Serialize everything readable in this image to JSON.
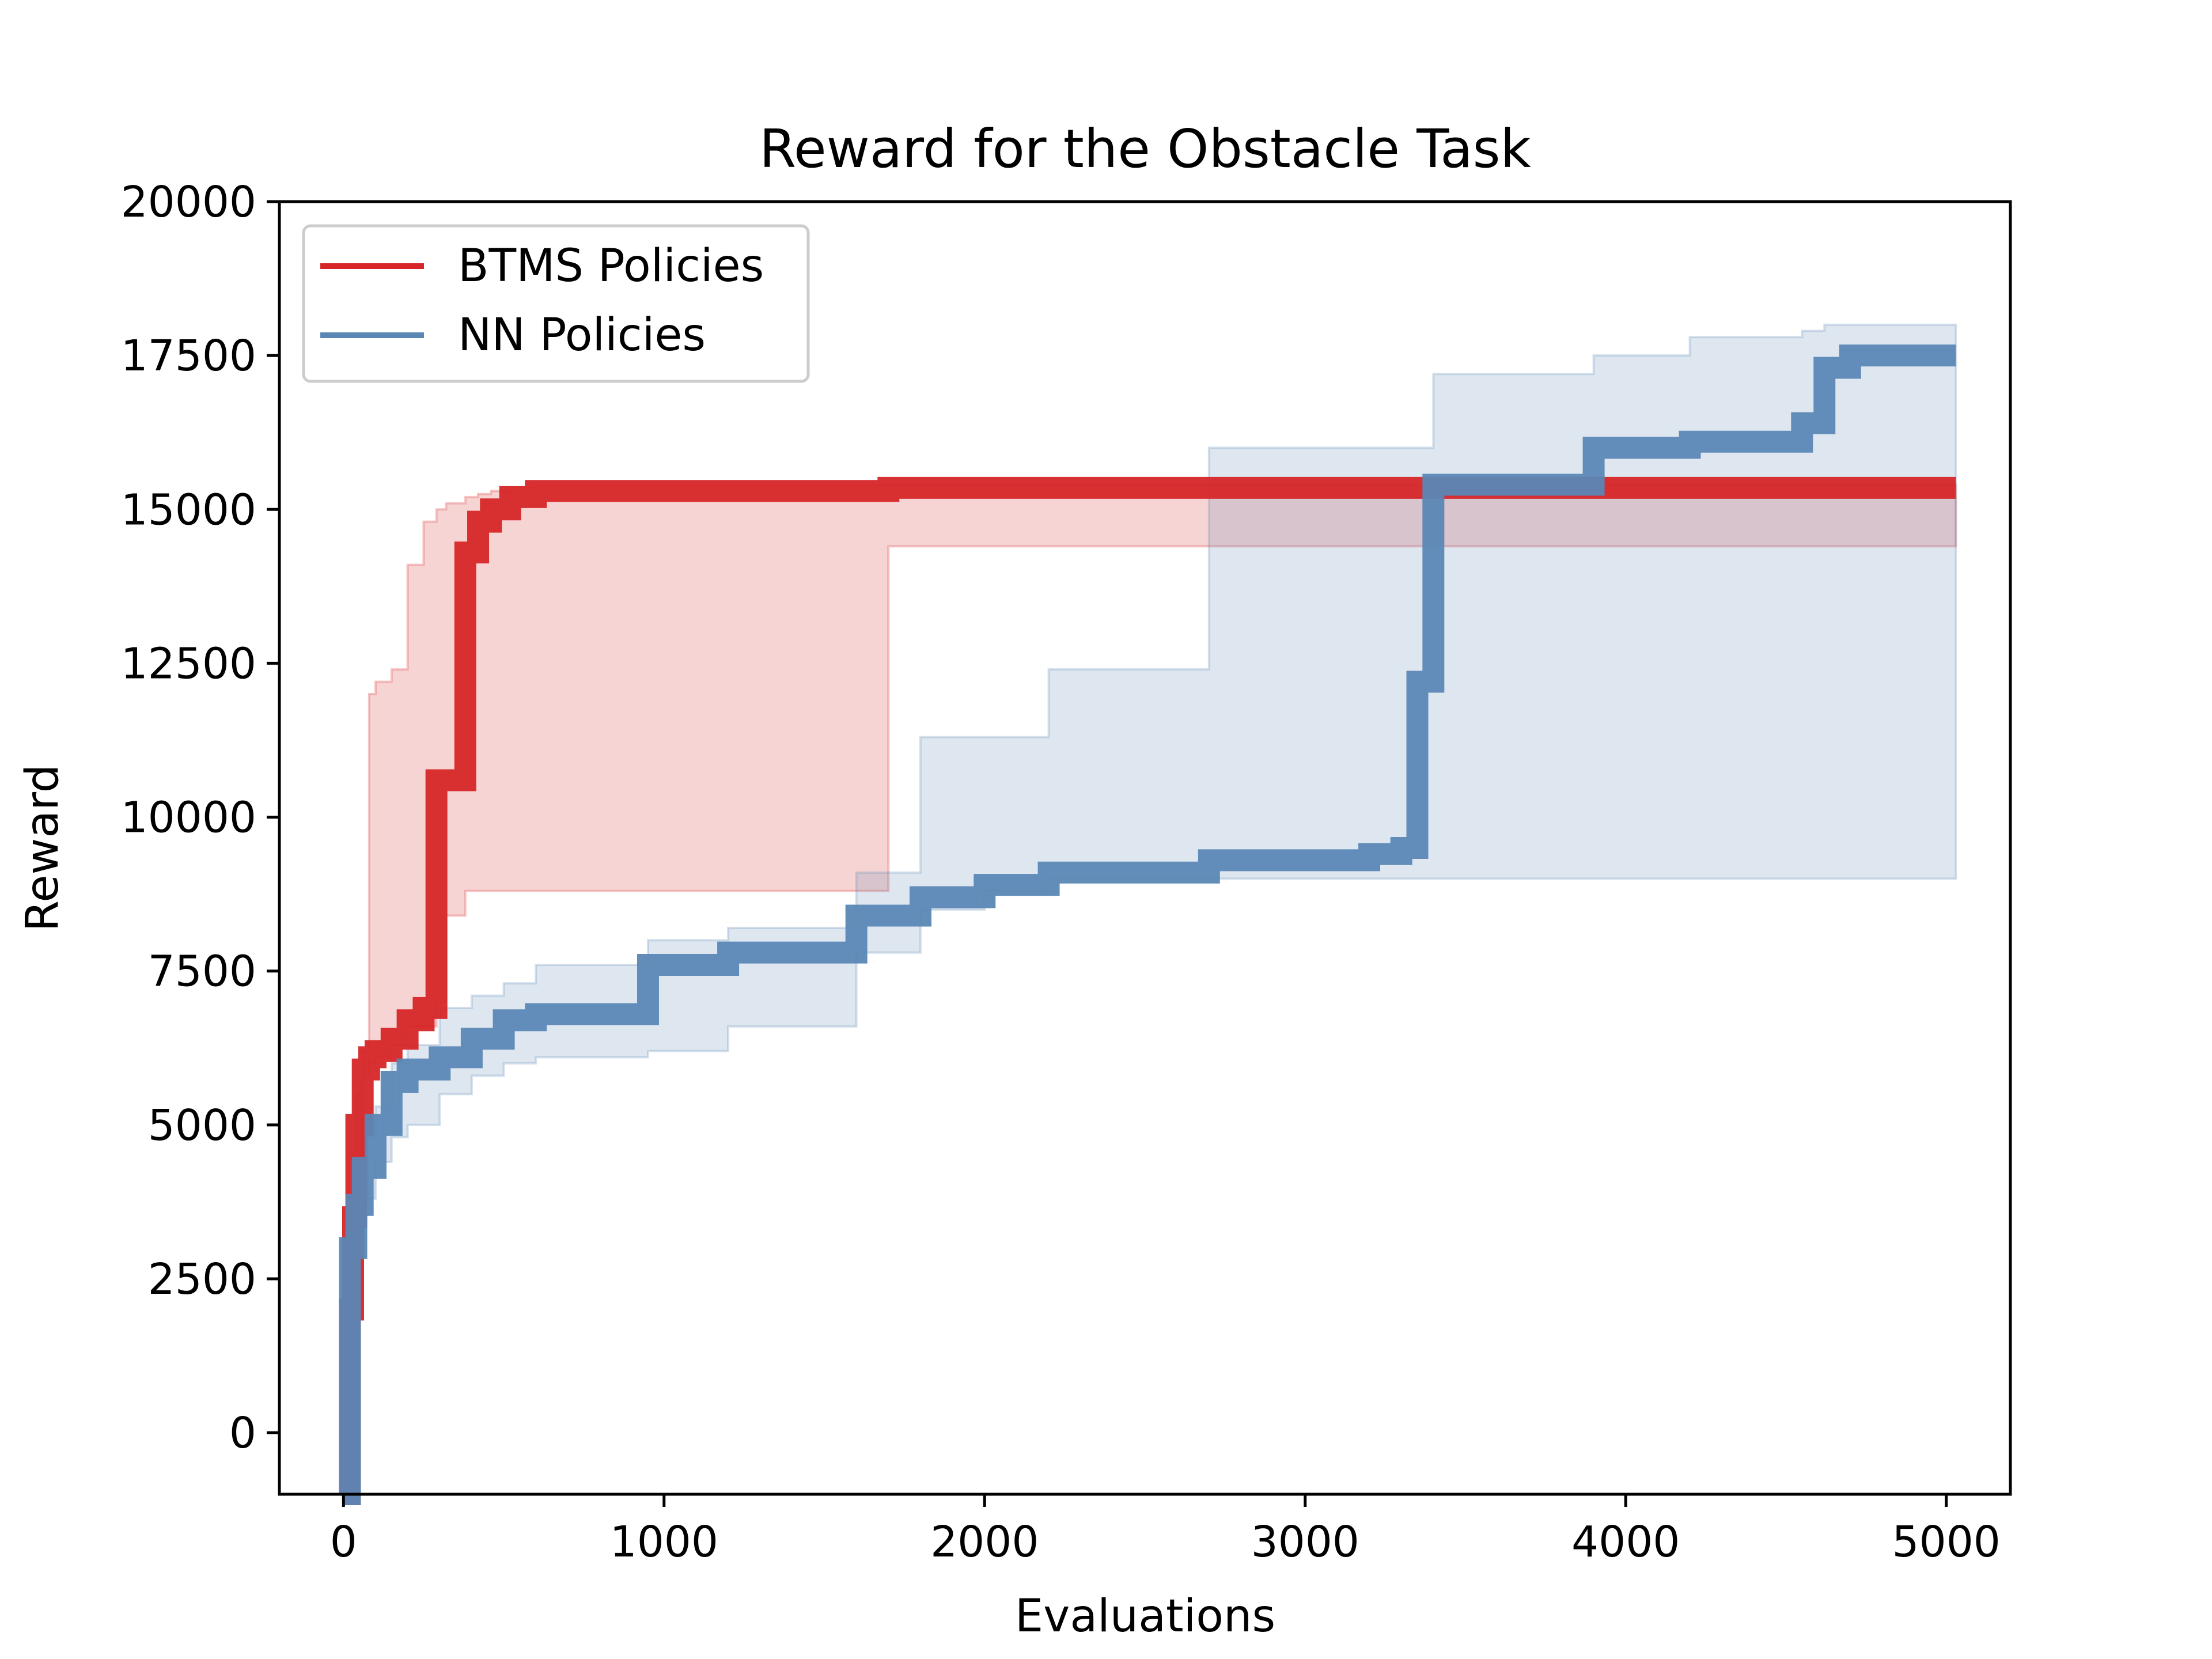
{
  "chart_data": {
    "type": "line",
    "title": "Reward for the Obstacle Task",
    "xlabel": "Evaluations",
    "ylabel": "Reward",
    "xlim": [
      -200,
      5200
    ],
    "ylim": [
      -1000,
      20000
    ],
    "xticks": [
      0,
      1000,
      2000,
      3000,
      4000,
      5000
    ],
    "yticks": [
      0,
      2500,
      5000,
      7500,
      10000,
      12500,
      15000,
      17500,
      20000
    ],
    "xtick_labels": [
      "0",
      "1000",
      "2000",
      "3000",
      "4000",
      "5000"
    ],
    "ytick_labels": [
      "0",
      "2500",
      "5000",
      "7500",
      "10000",
      "12500",
      "15000",
      "17500",
      "20000"
    ],
    "legend_position": "upper-left",
    "grid": false,
    "series": [
      {
        "name": "BTMS Policies",
        "color": "#d62628",
        "x": [
          0,
          20,
          30,
          40,
          60,
          80,
          100,
          150,
          200,
          250,
          290,
          320,
          380,
          420,
          460,
          520,
          600,
          1500,
          1700,
          5030
        ],
        "y": [
          -1000,
          2000,
          3500,
          5000,
          5900,
          6100,
          6200,
          6400,
          6700,
          6900,
          10600,
          10600,
          14300,
          14800,
          15000,
          15200,
          15300,
          15300,
          15350,
          15350
        ],
        "band_low": [
          -1000,
          1500,
          2500,
          4500,
          5800,
          6000,
          6100,
          6300,
          6600,
          6600,
          7000,
          8400,
          8800,
          8800,
          8800,
          8800,
          8800,
          8800,
          14400,
          14400
        ],
        "band_high": [
          -1000,
          3000,
          4500,
          5500,
          6200,
          12000,
          12200,
          12400,
          14100,
          14800,
          15000,
          15100,
          15200,
          15250,
          15300,
          15350,
          15400,
          15400,
          15400,
          15400
        ]
      },
      {
        "name": "NN Policies",
        "color": "#5b87b5",
        "x": [
          0,
          20,
          40,
          60,
          100,
          150,
          200,
          300,
          400,
          500,
          600,
          950,
          1200,
          1600,
          1800,
          2000,
          2200,
          2700,
          3200,
          3300,
          3350,
          3400,
          3900,
          4200,
          4550,
          4620,
          4700,
          5030
        ],
        "y": [
          -1000,
          3000,
          3700,
          4300,
          5000,
          5700,
          5900,
          6100,
          6400,
          6700,
          6800,
          7600,
          7800,
          8400,
          8700,
          8900,
          9100,
          9300,
          9400,
          9500,
          12200,
          15400,
          16000,
          16100,
          16400,
          17300,
          17500,
          17500
        ],
        "band_low": [
          -1000,
          2500,
          3200,
          3800,
          4400,
          4800,
          5000,
          5500,
          5800,
          6000,
          6100,
          6200,
          6600,
          7800,
          8500,
          8800,
          9000,
          9000,
          9000,
          9000,
          9000,
          9000,
          9000,
          9000,
          9000,
          9000,
          9000,
          9000
        ],
        "band_high": [
          -1000,
          3500,
          4200,
          4800,
          5300,
          6000,
          6300,
          6900,
          7100,
          7300,
          7600,
          8000,
          8200,
          9100,
          11300,
          11300,
          12400,
          16000,
          16000,
          16000,
          16000,
          17200,
          17500,
          17800,
          17900,
          18000,
          18000,
          18000
        ]
      }
    ]
  }
}
